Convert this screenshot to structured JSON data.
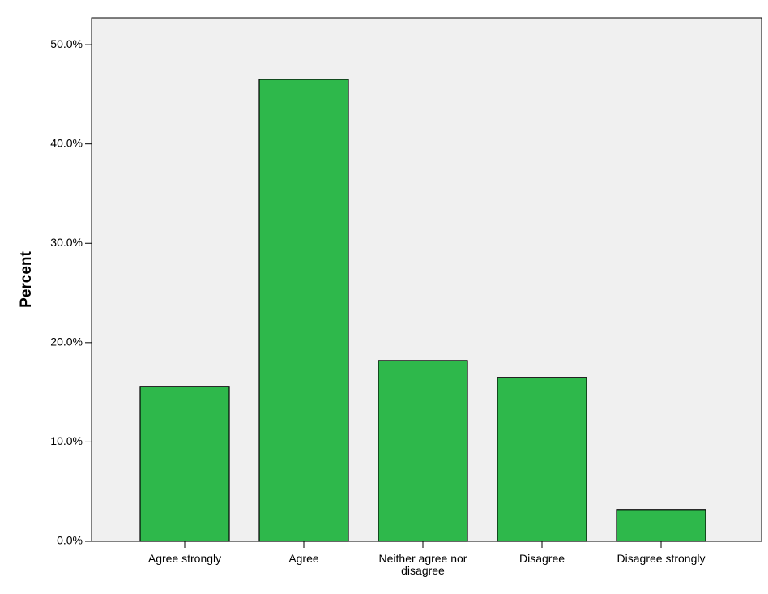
{
  "chart_data": {
    "type": "bar",
    "y_label": "Percent",
    "categories": [
      "Agree strongly",
      "Agree",
      "Neither agree nor disagree",
      "Disagree",
      "Disagree strongly"
    ],
    "values": [
      15.6,
      46.5,
      18.2,
      16.5,
      3.2
    ],
    "color": "#2eb84b",
    "ylim": [
      0,
      52.7
    ],
    "yticks": [
      {
        "value": 0,
        "label": "0.0%"
      },
      {
        "value": 10,
        "label": "10.0%"
      },
      {
        "value": 20,
        "label": "20.0%"
      },
      {
        "value": 30,
        "label": "30.0%"
      },
      {
        "value": 40,
        "label": "40.0%"
      },
      {
        "value": 50,
        "label": "50.0%"
      }
    ]
  }
}
